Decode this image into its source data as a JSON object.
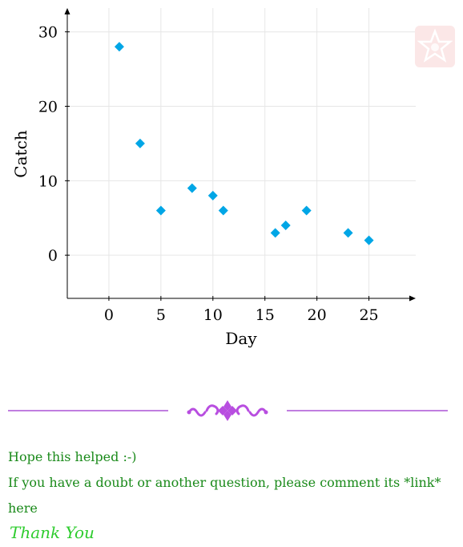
{
  "chart_data": {
    "type": "scatter",
    "xlabel": "Day",
    "ylabel": "Catch",
    "xlim": [
      -4,
      29.5
    ],
    "ylim": [
      -5.8,
      33.2
    ],
    "xticks": [
      0,
      5,
      10,
      15,
      20,
      25
    ],
    "yticks": [
      0,
      10,
      20,
      30
    ],
    "grid": true,
    "marker": "diamond",
    "color": "#00a6e6",
    "points": [
      {
        "x": 1,
        "y": 28
      },
      {
        "x": 3,
        "y": 15
      },
      {
        "x": 5,
        "y": 6
      },
      {
        "x": 8,
        "y": 9
      },
      {
        "x": 10,
        "y": 8
      },
      {
        "x": 11,
        "y": 6
      },
      {
        "x": 16,
        "y": 3
      },
      {
        "x": 17,
        "y": 4
      },
      {
        "x": 19,
        "y": 6
      },
      {
        "x": 23,
        "y": 3
      },
      {
        "x": 25,
        "y": 2
      }
    ]
  },
  "footer": {
    "line1": "Hope this helped  :-)",
    "line2": "If you have a doubt or another question, please comment its *link*",
    "line3": "here",
    "thanks": "Thank You",
    "divider_color": "#c07ee0",
    "ornament_color": "#b84ee0",
    "text_color": "#1a8a1a",
    "thanks_color": "#2ecc2e"
  },
  "stamp": {
    "icon": "star-badge-icon",
    "color": "#fbe7e7"
  }
}
